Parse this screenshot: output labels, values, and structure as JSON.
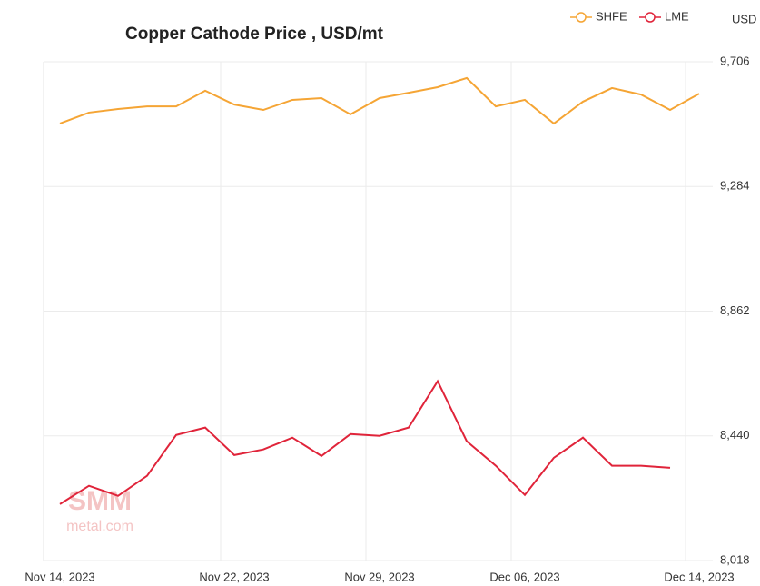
{
  "chart_data": {
    "type": "line",
    "title": "Copper Cathode Price , USD/mt",
    "y_unit": "USD",
    "watermark": [
      "SMM",
      "metal.com"
    ],
    "categories": [
      "Nov 14, 2023",
      null,
      null,
      null,
      null,
      null,
      "Nov 22, 2023",
      null,
      null,
      null,
      null,
      "Nov 29, 2023",
      null,
      null,
      null,
      null,
      "Dec 06, 2023",
      null,
      null,
      null,
      null,
      null,
      "Dec 14, 2023"
    ],
    "series": [
      {
        "name": "SHFE",
        "color": "#f5a535",
        "values": [
          9497,
          9534,
          9546,
          9555,
          9555,
          9608,
          9561,
          9543,
          9577,
          9583,
          9528,
          9583,
          9601,
          9620,
          9651,
          9555,
          9577,
          9497,
          9571,
          9617,
          9595,
          9543,
          9598
        ]
      },
      {
        "name": "LME",
        "color": "#e0243a",
        "values": [
          8209,
          8271,
          8237,
          8305,
          8443,
          8468,
          8375,
          8394,
          8434,
          8372,
          8446,
          8440,
          8468,
          8625,
          8422,
          8339,
          8240,
          8366,
          8434,
          8339,
          8339,
          8332,
          null
        ]
      }
    ],
    "ylim": [
      8018,
      9706
    ],
    "yticks": [
      {
        "value": 8018,
        "label": "8,018"
      },
      {
        "value": 8440,
        "label": "8,440"
      },
      {
        "value": 8862,
        "label": "8,862"
      },
      {
        "value": 9284,
        "label": "9,284"
      },
      {
        "value": 9706,
        "label": "9,706"
      }
    ],
    "grid": true,
    "legend": "top-right"
  }
}
